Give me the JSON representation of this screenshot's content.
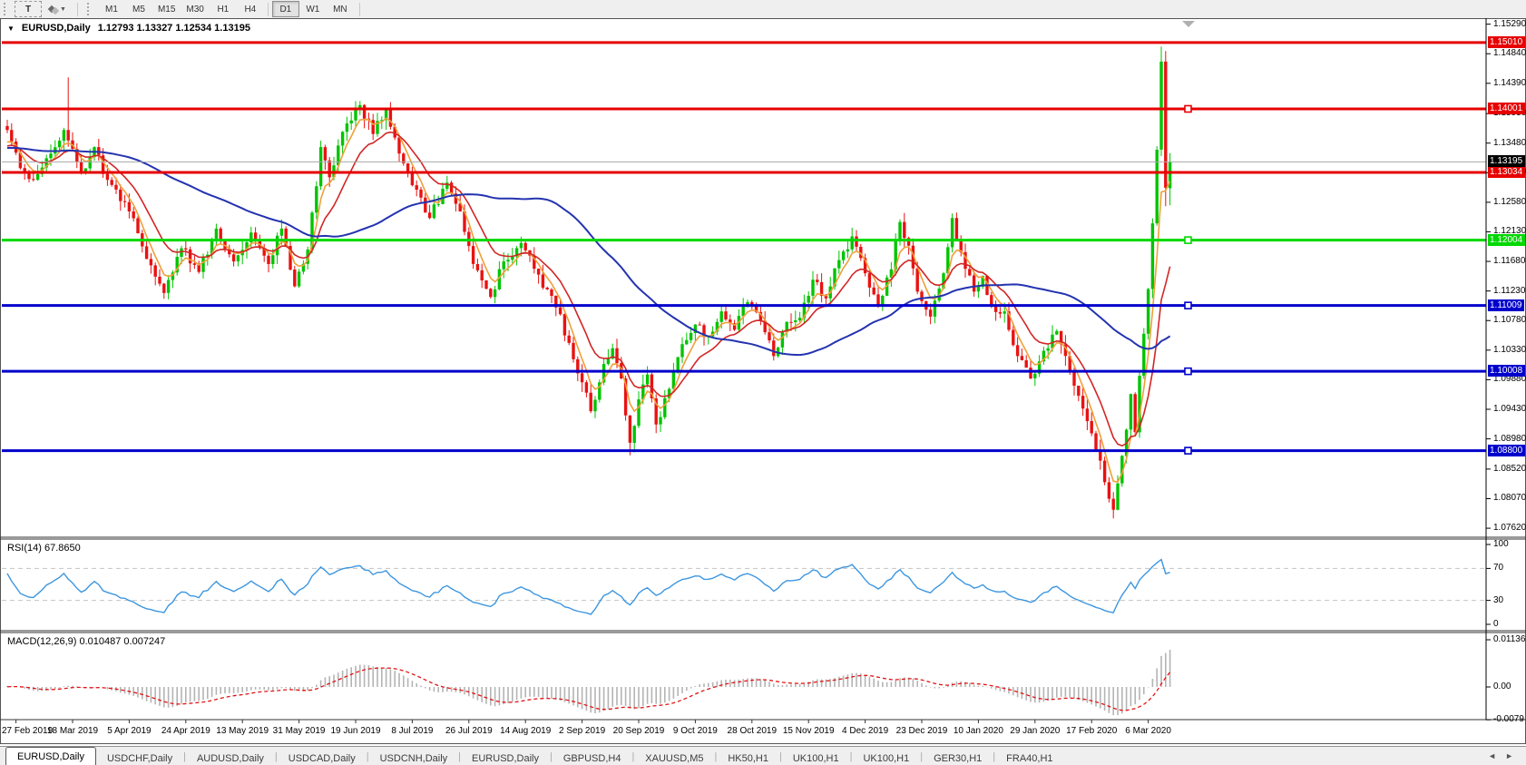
{
  "toolbar": {
    "t_button": "T",
    "timeframes": [
      {
        "label": "M1",
        "active": false
      },
      {
        "label": "M5",
        "active": false
      },
      {
        "label": "M15",
        "active": false
      },
      {
        "label": "M30",
        "active": false
      },
      {
        "label": "H1",
        "active": false
      },
      {
        "label": "H4",
        "active": false
      },
      {
        "label": "D1",
        "active": true
      },
      {
        "label": "W1",
        "active": false
      },
      {
        "label": "MN",
        "active": false
      }
    ]
  },
  "chart": {
    "symbol_title": "EURUSD,Daily",
    "ohlc_line": "1.12793 1.13327 1.12534 1.13195",
    "price_ticks": [
      "1.15290",
      "1.14840",
      "1.14390",
      "1.13930",
      "1.13480",
      "1.13030",
      "1.12580",
      "1.12130",
      "1.11680",
      "1.11230",
      "1.10780",
      "1.10330",
      "1.09880",
      "1.09430",
      "1.08980",
      "1.08520",
      "1.08070",
      "1.07620"
    ],
    "current_price": {
      "label": "1.13195",
      "value": 1.13195,
      "bg": "#000000",
      "fg": "#ffffff"
    }
  },
  "panels": {
    "rsi_label": "RSI(14) 67.8650",
    "macd_label": "MACD(12,26,9) 0.010487 0.007247",
    "rsi_axis": [
      {
        "label": "100",
        "value": 100
      },
      {
        "label": "70",
        "value": 70
      },
      {
        "label": "30",
        "value": 30
      },
      {
        "label": "0",
        "value": 0
      }
    ],
    "macd_axis": [
      {
        "label": "0.011362",
        "value": 0.011362
      },
      {
        "label": "0.00",
        "value": 0
      },
      {
        "label": "-0.0079",
        "value": -0.0079
      }
    ]
  },
  "tabs": [
    {
      "label": "EURUSD,Daily",
      "active": true
    },
    {
      "label": "USDCHF,Daily",
      "active": false
    },
    {
      "label": "AUDUSD,Daily",
      "active": false
    },
    {
      "label": "USDCAD,Daily",
      "active": false
    },
    {
      "label": "USDCNH,Daily",
      "active": false
    },
    {
      "label": "EURUSD,Daily",
      "active": false
    },
    {
      "label": "GBPUSD,H4",
      "active": false
    },
    {
      "label": "XAUUSD,M5",
      "active": false
    },
    {
      "label": "HK50,H1",
      "active": false
    },
    {
      "label": "UK100,H1",
      "active": false
    },
    {
      "label": "UK100,H1",
      "active": false
    },
    {
      "label": "GER30,H1",
      "active": false
    },
    {
      "label": "FRA40,H1",
      "active": false
    }
  ],
  "icons": {
    "title_collapse": "▼",
    "dropdown_caret": "▼",
    "tab_scroll_left": "◄",
    "tab_scroll_right": "►"
  },
  "colors": {
    "up": "#00c400",
    "down": "#e81212",
    "ma_fast": "#efa039",
    "ma_mid": "#d22626",
    "ma_slow": "#2433b0",
    "rsi": "#3d96e0",
    "rsi_level": "#c4c4c4",
    "macd_hist": "#b4b4b4",
    "macd_signal": "#e01414",
    "current_line": "#a8a8a8"
  },
  "chart_data": {
    "type": "candlestick",
    "symbol": "EURUSD",
    "timeframe": "Daily",
    "last_bar": {
      "open": 1.12793,
      "high": 1.13327,
      "low": 1.12534,
      "close": 1.13195
    },
    "x_tick_labels": [
      "27 Feb 2019",
      "18 Mar 2019",
      "5 Apr 2019",
      "24 Apr 2019",
      "13 May 2019",
      "31 May 2019",
      "19 Jun 2019",
      "8 Jul 2019",
      "26 Jul 2019",
      "14 Aug 2019",
      "2 Sep 2019",
      "20 Sep 2019",
      "9 Oct 2019",
      "28 Oct 2019",
      "15 Nov 2019",
      "4 Dec 2019",
      "23 Dec 2019",
      "10 Jan 2020",
      "29 Jan 2020",
      "17 Feb 2020",
      "6 Mar 2020"
    ],
    "bars_per_x_tick": 13,
    "bar_count": 268,
    "visible_price_range": [
      1.07483,
      1.15354
    ],
    "price_axis_ticks": [
      1.1529,
      1.1484,
      1.1439,
      1.1393,
      1.1348,
      1.1303,
      1.1258,
      1.1213,
      1.1168,
      1.1123,
      1.1078,
      1.1033,
      1.0988,
      1.0943,
      1.0898,
      1.0852,
      1.0807,
      1.0762
    ],
    "horizontal_lines": [
      {
        "price": 1.1501,
        "label": "1.15010",
        "color": "#e60000",
        "selected": false
      },
      {
        "price": 1.14001,
        "label": "1.14001",
        "color": "#e60000",
        "selected": true
      },
      {
        "price": 1.13034,
        "label": "1.13034",
        "color": "#e60000",
        "selected": false
      },
      {
        "price": 1.12004,
        "label": "1.12004",
        "color": "#00d800",
        "selected": true
      },
      {
        "price": 1.11009,
        "label": "1.11009",
        "color": "#0000cc",
        "selected": true
      },
      {
        "price": 1.10008,
        "label": "1.10008",
        "color": "#0000cc",
        "selected": true
      },
      {
        "price": 1.088,
        "label": "1.08800",
        "color": "#0000cc",
        "selected": true
      }
    ],
    "close_anchors": [
      [
        0,
        1.1368
      ],
      [
        3,
        1.131
      ],
      [
        6,
        1.1292
      ],
      [
        10,
        1.1332
      ],
      [
        13,
        1.1368
      ],
      [
        14,
        1.1352
      ],
      [
        17,
        1.1302
      ],
      [
        20,
        1.1342
      ],
      [
        23,
        1.1292
      ],
      [
        28,
        1.1244
      ],
      [
        33,
        1.1162
      ],
      [
        36,
        1.112
      ],
      [
        40,
        1.1188
      ],
      [
        44,
        1.1152
      ],
      [
        48,
        1.1218
      ],
      [
        52,
        1.1168
      ],
      [
        56,
        1.1212
      ],
      [
        60,
        1.1164
      ],
      [
        63,
        1.1218
      ],
      [
        66,
        1.113
      ],
      [
        69,
        1.1186
      ],
      [
        72,
        1.1342
      ],
      [
        74,
        1.1296
      ],
      [
        78,
        1.1378
      ],
      [
        81,
        1.1406
      ],
      [
        84,
        1.1362
      ],
      [
        87,
        1.1398
      ],
      [
        90,
        1.1332
      ],
      [
        93,
        1.1284
      ],
      [
        97,
        1.1234
      ],
      [
        101,
        1.1288
      ],
      [
        104,
        1.1244
      ],
      [
        107,
        1.1164
      ],
      [
        111,
        1.1114
      ],
      [
        114,
        1.1168
      ],
      [
        118,
        1.1196
      ],
      [
        122,
        1.1148
      ],
      [
        126,
        1.1098
      ],
      [
        129,
        1.1044
      ],
      [
        132,
        1.0984
      ],
      [
        134,
        1.094
      ],
      [
        137,
        1.1012
      ],
      [
        139,
        1.1036
      ],
      [
        141,
        1.099
      ],
      [
        143,
        1.0892
      ],
      [
        145,
        1.0958
      ],
      [
        147,
        1.0996
      ],
      [
        149,
        1.092
      ],
      [
        152,
        1.0974
      ],
      [
        155,
        1.1042
      ],
      [
        158,
        1.1072
      ],
      [
        161,
        1.1054
      ],
      [
        164,
        1.1092
      ],
      [
        167,
        1.1064
      ],
      [
        170,
        1.1106
      ],
      [
        173,
        1.1078
      ],
      [
        176,
        1.1024
      ],
      [
        179,
        1.1076
      ],
      [
        182,
        1.1082
      ],
      [
        185,
        1.114
      ],
      [
        188,
        1.1112
      ],
      [
        191,
        1.117
      ],
      [
        194,
        1.1206
      ],
      [
        197,
        1.115
      ],
      [
        200,
        1.1102
      ],
      [
        203,
        1.1156
      ],
      [
        205,
        1.1228
      ],
      [
        207,
        1.1192
      ],
      [
        209,
        1.1122
      ],
      [
        212,
        1.1084
      ],
      [
        215,
        1.115
      ],
      [
        217,
        1.1234
      ],
      [
        219,
        1.1182
      ],
      [
        222,
        1.1122
      ],
      [
        224,
        1.1146
      ],
      [
        226,
        1.1102
      ],
      [
        229,
        1.1092
      ],
      [
        232,
        1.1024
      ],
      [
        235,
        1.099
      ],
      [
        238,
        1.1032
      ],
      [
        241,
        1.1062
      ],
      [
        244,
        1.1
      ],
      [
        247,
        1.0944
      ],
      [
        250,
        1.0882
      ],
      [
        252,
        1.0832
      ],
      [
        254,
        1.079
      ],
      [
        256,
        1.0872
      ],
      [
        257,
        1.0912
      ],
      [
        258,
        1.0966
      ],
      [
        259,
        1.0908
      ],
      [
        260,
        1.0994
      ],
      [
        261,
        1.1058
      ],
      [
        262,
        1.1126
      ],
      [
        263,
        1.1226
      ],
      [
        264,
        1.1338
      ],
      [
        265,
        1.1472
      ],
      [
        266,
        1.128
      ],
      [
        267,
        1.13195
      ]
    ],
    "bar_overrides": {
      "14": {
        "h": 1.1448
      },
      "81": {
        "h": 1.1412
      },
      "87": {
        "h": 1.1402
      },
      "143": {
        "l": 1.0873
      },
      "254": {
        "l": 1.0777
      },
      "265": {
        "h": 1.1495
      },
      "266": {
        "o": 1.1472,
        "h": 1.1488,
        "l": 1.1252
      },
      "267": {
        "o": 1.12793,
        "h": 1.13327,
        "l": 1.12534,
        "c": 1.13195
      }
    },
    "moving_averages": [
      {
        "name": "fast",
        "type": "ema",
        "period": 5,
        "color_key": "ma_fast"
      },
      {
        "name": "mid",
        "type": "ema",
        "period": 13,
        "color_key": "ma_mid"
      },
      {
        "name": "slow",
        "type": "sma",
        "period": 55,
        "color_key": "ma_slow"
      }
    ],
    "indicators": [
      {
        "name": "RSI",
        "period": 14,
        "current": 67.865,
        "overbought": 70,
        "oversold": 30,
        "range": [
          0,
          100
        ]
      },
      {
        "name": "MACD",
        "fast": 12,
        "slow": 26,
        "signal": 9,
        "current_macd": 0.010487,
        "current_signal": 0.007247,
        "axis_max": 0.011362,
        "axis_min": -0.0079
      }
    ]
  }
}
